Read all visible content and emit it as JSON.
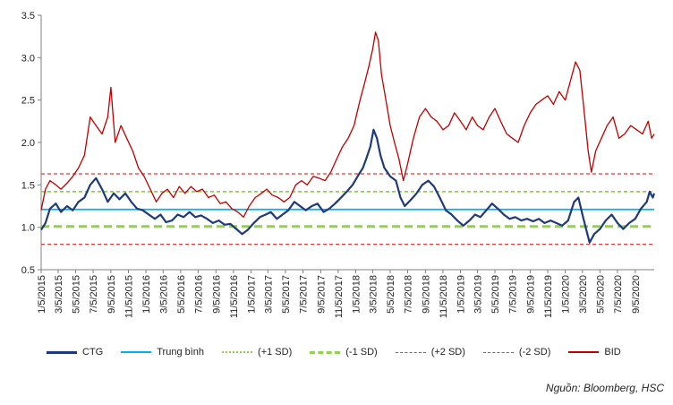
{
  "chart_data": {
    "type": "line",
    "ylim": [
      0.5,
      3.5
    ],
    "yticks": [
      "0.5",
      "1.0",
      "1.5",
      "2.0",
      "2.5",
      "3.0",
      "3.5"
    ],
    "xticks": [
      "1/5/2015",
      "3/5/2015",
      "5/5/2015",
      "7/5/2015",
      "9/5/2015",
      "11/5/2015",
      "1/5/2016",
      "3/5/2016",
      "5/5/2016",
      "7/5/2016",
      "9/5/2016",
      "11/5/2016",
      "1/5/2017",
      "3/5/2017",
      "5/5/2017",
      "7/5/2017",
      "9/5/2017",
      "11/5/2017",
      "1/5/2018",
      "3/5/2018",
      "5/5/2018",
      "7/5/2018",
      "9/5/2018",
      "11/5/2018",
      "1/5/2019",
      "3/5/2019",
      "5/5/2019",
      "7/5/2019",
      "9/5/2019",
      "11/5/2019",
      "1/5/2020",
      "3/5/2020",
      "5/5/2020",
      "7/5/2020",
      "9/5/2020"
    ],
    "x_start": "2015-01-05",
    "x_end": "2020-11-10",
    "reference_lines": [
      {
        "name": "Trung bình",
        "value": 1.21,
        "color": "#00b0f0",
        "dash": "solid"
      },
      {
        "name": "(+1 SD)",
        "value": 1.42,
        "color": "#92d050",
        "dash": "short"
      },
      {
        "name": "(-1 SD)",
        "value": 1.01,
        "color": "#92d050",
        "dash": "long"
      },
      {
        "name": "(+2 SD)",
        "value": 1.63,
        "color": "#e53935",
        "dash": "short"
      },
      {
        "name": "(-2 SD)",
        "value": 0.8,
        "color": "#e53935",
        "dash": "short"
      }
    ],
    "series": [
      {
        "name": "CTG",
        "color": "#1f3a7a",
        "points": [
          [
            "2015-01-05",
            0.97
          ],
          [
            "2015-01-20",
            1.05
          ],
          [
            "2015-02-05",
            1.22
          ],
          [
            "2015-02-25",
            1.28
          ],
          [
            "2015-03-15",
            1.18
          ],
          [
            "2015-04-05",
            1.25
          ],
          [
            "2015-04-25",
            1.2
          ],
          [
            "2015-05-15",
            1.3
          ],
          [
            "2015-06-05",
            1.35
          ],
          [
            "2015-06-25",
            1.5
          ],
          [
            "2015-07-15",
            1.58
          ],
          [
            "2015-08-05",
            1.45
          ],
          [
            "2015-08-25",
            1.3
          ],
          [
            "2015-09-15",
            1.4
          ],
          [
            "2015-10-05",
            1.33
          ],
          [
            "2015-10-25",
            1.4
          ],
          [
            "2015-11-15",
            1.3
          ],
          [
            "2015-12-05",
            1.22
          ],
          [
            "2015-12-25",
            1.2
          ],
          [
            "2016-01-15",
            1.15
          ],
          [
            "2016-02-05",
            1.1
          ],
          [
            "2016-02-25",
            1.15
          ],
          [
            "2016-03-15",
            1.06
          ],
          [
            "2016-04-05",
            1.08
          ],
          [
            "2016-04-25",
            1.15
          ],
          [
            "2016-05-15",
            1.12
          ],
          [
            "2016-06-05",
            1.18
          ],
          [
            "2016-06-25",
            1.12
          ],
          [
            "2016-07-15",
            1.14
          ],
          [
            "2016-08-05",
            1.1
          ],
          [
            "2016-08-25",
            1.05
          ],
          [
            "2016-09-15",
            1.08
          ],
          [
            "2016-10-05",
            1.03
          ],
          [
            "2016-10-25",
            1.04
          ],
          [
            "2016-11-15",
            0.98
          ],
          [
            "2016-12-05",
            0.92
          ],
          [
            "2016-12-25",
            0.97
          ],
          [
            "2017-01-15",
            1.05
          ],
          [
            "2017-02-05",
            1.12
          ],
          [
            "2017-02-25",
            1.15
          ],
          [
            "2017-03-15",
            1.18
          ],
          [
            "2017-04-05",
            1.1
          ],
          [
            "2017-04-25",
            1.15
          ],
          [
            "2017-05-15",
            1.2
          ],
          [
            "2017-06-05",
            1.3
          ],
          [
            "2017-06-25",
            1.25
          ],
          [
            "2017-07-15",
            1.2
          ],
          [
            "2017-08-05",
            1.25
          ],
          [
            "2017-08-25",
            1.28
          ],
          [
            "2017-09-15",
            1.18
          ],
          [
            "2017-10-05",
            1.22
          ],
          [
            "2017-10-25",
            1.28
          ],
          [
            "2017-11-15",
            1.35
          ],
          [
            "2017-12-05",
            1.42
          ],
          [
            "2017-12-25",
            1.5
          ],
          [
            "2018-01-15",
            1.62
          ],
          [
            "2018-01-30",
            1.7
          ],
          [
            "2018-02-10",
            1.8
          ],
          [
            "2018-02-25",
            1.95
          ],
          [
            "2018-03-08",
            2.15
          ],
          [
            "2018-03-20",
            2.05
          ],
          [
            "2018-04-01",
            1.85
          ],
          [
            "2018-04-15",
            1.7
          ],
          [
            "2018-05-05",
            1.6
          ],
          [
            "2018-05-25",
            1.55
          ],
          [
            "2018-06-10",
            1.35
          ],
          [
            "2018-06-25",
            1.25
          ],
          [
            "2018-07-15",
            1.32
          ],
          [
            "2018-08-05",
            1.4
          ],
          [
            "2018-08-25",
            1.5
          ],
          [
            "2018-09-15",
            1.55
          ],
          [
            "2018-10-05",
            1.48
          ],
          [
            "2018-10-25",
            1.35
          ],
          [
            "2018-11-15",
            1.2
          ],
          [
            "2018-12-05",
            1.15
          ],
          [
            "2018-12-25",
            1.08
          ],
          [
            "2019-01-15",
            1.02
          ],
          [
            "2019-02-05",
            1.08
          ],
          [
            "2019-02-25",
            1.15
          ],
          [
            "2019-03-15",
            1.12
          ],
          [
            "2019-04-05",
            1.2
          ],
          [
            "2019-04-25",
            1.28
          ],
          [
            "2019-05-15",
            1.22
          ],
          [
            "2019-06-05",
            1.15
          ],
          [
            "2019-06-25",
            1.1
          ],
          [
            "2019-07-15",
            1.12
          ],
          [
            "2019-08-05",
            1.08
          ],
          [
            "2019-08-25",
            1.1
          ],
          [
            "2019-09-15",
            1.07
          ],
          [
            "2019-10-05",
            1.1
          ],
          [
            "2019-10-25",
            1.05
          ],
          [
            "2019-11-15",
            1.08
          ],
          [
            "2019-12-05",
            1.05
          ],
          [
            "2019-12-25",
            1.02
          ],
          [
            "2020-01-15",
            1.08
          ],
          [
            "2020-02-05",
            1.3
          ],
          [
            "2020-02-20",
            1.35
          ],
          [
            "2020-03-05",
            1.15
          ],
          [
            "2020-03-20",
            0.95
          ],
          [
            "2020-03-30",
            0.82
          ],
          [
            "2020-04-15",
            0.92
          ],
          [
            "2020-05-05",
            0.98
          ],
          [
            "2020-05-25",
            1.08
          ],
          [
            "2020-06-15",
            1.15
          ],
          [
            "2020-07-05",
            1.05
          ],
          [
            "2020-07-25",
            0.98
          ],
          [
            "2020-08-15",
            1.05
          ],
          [
            "2020-09-05",
            1.1
          ],
          [
            "2020-09-25",
            1.22
          ],
          [
            "2020-10-15",
            1.3
          ],
          [
            "2020-10-25",
            1.42
          ],
          [
            "2020-11-05",
            1.35
          ],
          [
            "2020-11-10",
            1.4
          ]
        ]
      },
      {
        "name": "BID",
        "color": "#c00000",
        "points": [
          [
            "2015-01-05",
            1.2
          ],
          [
            "2015-01-20",
            1.45
          ],
          [
            "2015-02-05",
            1.55
          ],
          [
            "2015-02-25",
            1.5
          ],
          [
            "2015-03-15",
            1.45
          ],
          [
            "2015-04-05",
            1.52
          ],
          [
            "2015-04-25",
            1.6
          ],
          [
            "2015-05-15",
            1.7
          ],
          [
            "2015-06-05",
            1.85
          ],
          [
            "2015-06-25",
            2.3
          ],
          [
            "2015-07-15",
            2.2
          ],
          [
            "2015-08-05",
            2.1
          ],
          [
            "2015-08-25",
            2.3
          ],
          [
            "2015-09-05",
            2.65
          ],
          [
            "2015-09-20",
            2.0
          ],
          [
            "2015-10-10",
            2.2
          ],
          [
            "2015-10-30",
            2.05
          ],
          [
            "2015-11-20",
            1.9
          ],
          [
            "2015-12-10",
            1.7
          ],
          [
            "2015-12-30",
            1.6
          ],
          [
            "2016-01-20",
            1.45
          ],
          [
            "2016-02-10",
            1.3
          ],
          [
            "2016-03-01",
            1.4
          ],
          [
            "2016-03-20",
            1.45
          ],
          [
            "2016-04-10",
            1.35
          ],
          [
            "2016-04-30",
            1.48
          ],
          [
            "2016-05-20",
            1.4
          ],
          [
            "2016-06-10",
            1.48
          ],
          [
            "2016-06-30",
            1.42
          ],
          [
            "2016-07-20",
            1.45
          ],
          [
            "2016-08-10",
            1.35
          ],
          [
            "2016-08-30",
            1.38
          ],
          [
            "2016-09-20",
            1.28
          ],
          [
            "2016-10-10",
            1.3
          ],
          [
            "2016-10-30",
            1.22
          ],
          [
            "2016-11-20",
            1.18
          ],
          [
            "2016-12-10",
            1.12
          ],
          [
            "2016-12-30",
            1.25
          ],
          [
            "2017-01-20",
            1.35
          ],
          [
            "2017-02-10",
            1.4
          ],
          [
            "2017-03-01",
            1.45
          ],
          [
            "2017-03-20",
            1.38
          ],
          [
            "2017-04-10",
            1.35
          ],
          [
            "2017-04-30",
            1.3
          ],
          [
            "2017-05-20",
            1.35
          ],
          [
            "2017-06-10",
            1.5
          ],
          [
            "2017-06-30",
            1.55
          ],
          [
            "2017-07-20",
            1.5
          ],
          [
            "2017-08-10",
            1.6
          ],
          [
            "2017-08-30",
            1.58
          ],
          [
            "2017-09-20",
            1.55
          ],
          [
            "2017-10-10",
            1.65
          ],
          [
            "2017-10-30",
            1.8
          ],
          [
            "2017-11-20",
            1.95
          ],
          [
            "2017-12-10",
            2.05
          ],
          [
            "2017-12-30",
            2.2
          ],
          [
            "2018-01-20",
            2.5
          ],
          [
            "2018-02-05",
            2.7
          ],
          [
            "2018-02-20",
            2.9
          ],
          [
            "2018-03-05",
            3.1
          ],
          [
            "2018-03-15",
            3.3
          ],
          [
            "2018-03-25",
            3.2
          ],
          [
            "2018-04-05",
            2.8
          ],
          [
            "2018-04-20",
            2.5
          ],
          [
            "2018-05-05",
            2.2
          ],
          [
            "2018-05-20",
            2.0
          ],
          [
            "2018-06-05",
            1.8
          ],
          [
            "2018-06-20",
            1.55
          ],
          [
            "2018-07-05",
            1.75
          ],
          [
            "2018-07-25",
            2.05
          ],
          [
            "2018-08-15",
            2.3
          ],
          [
            "2018-09-05",
            2.4
          ],
          [
            "2018-09-25",
            2.3
          ],
          [
            "2018-10-15",
            2.25
          ],
          [
            "2018-11-05",
            2.15
          ],
          [
            "2018-11-25",
            2.2
          ],
          [
            "2018-12-15",
            2.35
          ],
          [
            "2019-01-05",
            2.25
          ],
          [
            "2019-01-25",
            2.15
          ],
          [
            "2019-02-15",
            2.3
          ],
          [
            "2019-03-05",
            2.2
          ],
          [
            "2019-03-25",
            2.15
          ],
          [
            "2019-04-15",
            2.3
          ],
          [
            "2019-05-05",
            2.4
          ],
          [
            "2019-05-25",
            2.25
          ],
          [
            "2019-06-15",
            2.1
          ],
          [
            "2019-07-05",
            2.05
          ],
          [
            "2019-07-25",
            2.0
          ],
          [
            "2019-08-15",
            2.2
          ],
          [
            "2019-09-05",
            2.35
          ],
          [
            "2019-09-25",
            2.45
          ],
          [
            "2019-10-15",
            2.5
          ],
          [
            "2019-11-05",
            2.55
          ],
          [
            "2019-11-25",
            2.45
          ],
          [
            "2019-12-15",
            2.6
          ],
          [
            "2020-01-05",
            2.5
          ],
          [
            "2020-01-25",
            2.75
          ],
          [
            "2020-02-10",
            2.95
          ],
          [
            "2020-02-25",
            2.85
          ],
          [
            "2020-03-10",
            2.4
          ],
          [
            "2020-03-25",
            1.9
          ],
          [
            "2020-04-05",
            1.65
          ],
          [
            "2020-04-20",
            1.9
          ],
          [
            "2020-05-10",
            2.05
          ],
          [
            "2020-05-30",
            2.2
          ],
          [
            "2020-06-20",
            2.3
          ],
          [
            "2020-07-10",
            2.05
          ],
          [
            "2020-07-30",
            2.1
          ],
          [
            "2020-08-20",
            2.2
          ],
          [
            "2020-09-10",
            2.15
          ],
          [
            "2020-09-30",
            2.1
          ],
          [
            "2020-10-20",
            2.25
          ],
          [
            "2020-11-01",
            2.05
          ],
          [
            "2020-11-10",
            2.1
          ]
        ]
      }
    ]
  },
  "legend": {
    "items": [
      {
        "label": "CTG",
        "color": "#1f3a7a",
        "style": "solid"
      },
      {
        "label": "Trung bình",
        "color": "#00b0f0",
        "style": "solid"
      },
      {
        "label": "(+1 SD)",
        "color": "#92d050",
        "style": "dotted"
      },
      {
        "label": "(-1 SD)",
        "color": "#92d050",
        "style": "dashed"
      },
      {
        "label": "(+2 SD)",
        "color": "#e53935",
        "style": "dashed"
      },
      {
        "label": "(-2 SD)",
        "color": "#e53935",
        "style": "dashed"
      },
      {
        "label": "BID",
        "color": "#c00000",
        "style": "solid"
      }
    ]
  },
  "source": "Nguồn: Bloomberg, HSC"
}
